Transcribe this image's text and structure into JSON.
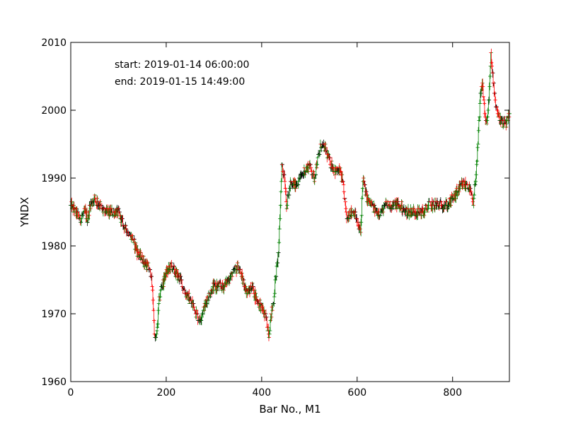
{
  "chart_data": {
    "type": "ohlc",
    "title": "",
    "xlabel": "Bar No., M1",
    "ylabel": "YNDX",
    "xlim": [
      0,
      919
    ],
    "ylim": [
      1960,
      2010
    ],
    "xticks": [
      0,
      200,
      400,
      600,
      800
    ],
    "yticks": [
      1960,
      1970,
      1980,
      1990,
      2000,
      2010
    ],
    "annotations": {
      "start": "start: 2019-01-14 06:00:00",
      "end": "end: 2019-01-15 14:49:00"
    },
    "colors": {
      "up": "#008000",
      "down": "#ff0000",
      "flat": "#000000"
    },
    "grid": false,
    "price_path": [
      [
        0,
        1986
      ],
      [
        10,
        1985
      ],
      [
        20,
        1984
      ],
      [
        30,
        1985
      ],
      [
        35,
        1984
      ],
      [
        40,
        1986
      ],
      [
        50,
        1987
      ],
      [
        60,
        1986
      ],
      [
        70,
        1985
      ],
      [
        80,
        1985
      ],
      [
        90,
        1985
      ],
      [
        100,
        1985
      ],
      [
        110,
        1983
      ],
      [
        120,
        1982
      ],
      [
        130,
        1981
      ],
      [
        140,
        1979
      ],
      [
        150,
        1978
      ],
      [
        160,
        1977
      ],
      [
        168,
        1976
      ],
      [
        172,
        1972
      ],
      [
        176,
        1966
      ],
      [
        180,
        1967
      ],
      [
        185,
        1972
      ],
      [
        190,
        1974
      ],
      [
        200,
        1976
      ],
      [
        210,
        1977
      ],
      [
        220,
        1976
      ],
      [
        230,
        1975
      ],
      [
        240,
        1973
      ],
      [
        250,
        1972
      ],
      [
        258,
        1971
      ],
      [
        263,
        1970
      ],
      [
        270,
        1969
      ],
      [
        280,
        1971
      ],
      [
        290,
        1973
      ],
      [
        300,
        1974
      ],
      [
        310,
        1974
      ],
      [
        320,
        1974
      ],
      [
        330,
        1975
      ],
      [
        340,
        1976
      ],
      [
        350,
        1977
      ],
      [
        360,
        1975
      ],
      [
        370,
        1973
      ],
      [
        380,
        1974
      ],
      [
        390,
        1972
      ],
      [
        400,
        1971
      ],
      [
        410,
        1969
      ],
      [
        415,
        1967
      ],
      [
        420,
        1970
      ],
      [
        425,
        1972
      ],
      [
        430,
        1976
      ],
      [
        436,
        1980
      ],
      [
        442,
        1992
      ],
      [
        448,
        1990
      ],
      [
        452,
        1986
      ],
      [
        460,
        1989
      ],
      [
        470,
        1989
      ],
      [
        480,
        1990
      ],
      [
        490,
        1991
      ],
      [
        500,
        1992
      ],
      [
        510,
        1990
      ],
      [
        518,
        1993
      ],
      [
        525,
        1995
      ],
      [
        535,
        1994
      ],
      [
        545,
        1992
      ],
      [
        555,
        1991
      ],
      [
        565,
        1991
      ],
      [
        572,
        1988
      ],
      [
        578,
        1984
      ],
      [
        585,
        1985
      ],
      [
        595,
        1985
      ],
      [
        602,
        1983
      ],
      [
        607,
        1982
      ],
      [
        612,
        1990
      ],
      [
        620,
        1987
      ],
      [
        630,
        1986
      ],
      [
        640,
        1985
      ],
      [
        650,
        1985
      ],
      [
        660,
        1986
      ],
      [
        670,
        1986
      ],
      [
        680,
        1986
      ],
      [
        690,
        1986
      ],
      [
        700,
        1985
      ],
      [
        710,
        1985
      ],
      [
        720,
        1985
      ],
      [
        730,
        1985
      ],
      [
        740,
        1985
      ],
      [
        750,
        1986
      ],
      [
        760,
        1986
      ],
      [
        770,
        1986
      ],
      [
        780,
        1986
      ],
      [
        790,
        1986
      ],
      [
        800,
        1987
      ],
      [
        810,
        1988
      ],
      [
        820,
        1989
      ],
      [
        830,
        1989
      ],
      [
        838,
        1988
      ],
      [
        843,
        1986
      ],
      [
        848,
        1990
      ],
      [
        852,
        1994
      ],
      [
        858,
        2002
      ],
      [
        862,
        2004
      ],
      [
        868,
        1999
      ],
      [
        872,
        1998
      ],
      [
        876,
        2002
      ],
      [
        880,
        2008
      ],
      [
        884,
        2005
      ],
      [
        890,
        2001
      ],
      [
        896,
        1999
      ],
      [
        905,
        1998
      ],
      [
        912,
        1998
      ],
      [
        919,
        1999
      ]
    ]
  }
}
